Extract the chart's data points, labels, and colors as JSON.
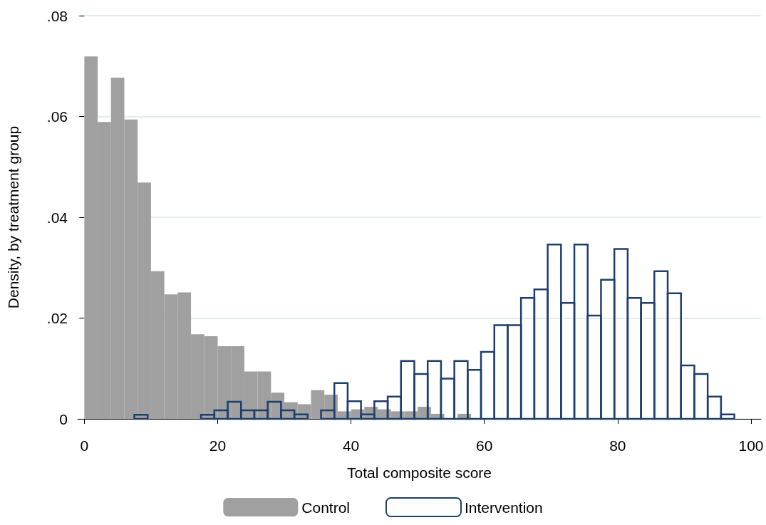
{
  "chart_data": {
    "type": "bar",
    "xlabel": "Total composite score",
    "ylabel": "Density, by treatment group",
    "xlim": [
      -1,
      101.5
    ],
    "xticks": [
      0,
      20,
      40,
      60,
      80,
      100
    ],
    "ylim": [
      0,
      0.08
    ],
    "yticks": [
      0,
      {
        "value": 0.02,
        "label": ".02"
      },
      {
        "value": 0.04,
        "label": ".04"
      },
      {
        "value": 0.06,
        "label": ".06"
      },
      {
        "value": 0.08,
        "label": ".08"
      }
    ],
    "grid": "y",
    "legend": "bottom",
    "series": [
      {
        "name": "Control",
        "color": "#a0a0a0",
        "x": [
          1,
          3,
          5,
          7,
          9,
          11,
          13,
          15,
          17,
          19,
          21,
          23,
          25,
          27,
          29,
          31,
          33,
          35,
          37,
          39,
          41,
          43,
          45,
          47,
          49,
          51,
          53,
          55,
          57
        ],
        "values": [
          0.0719,
          0.0589,
          0.0677,
          0.0594,
          0.0469,
          0.0293,
          0.0247,
          0.0251,
          0.0168,
          0.0164,
          0.0144,
          0.0144,
          0.0094,
          0.0094,
          0.0052,
          0.0033,
          0.0029,
          0.0057,
          0.0048,
          0.0015,
          0.0019,
          0.0024,
          0.0019,
          0.0015,
          0.0015,
          0.0024,
          0.001,
          0,
          0.001
        ]
      },
      {
        "name": "Intervention",
        "color": "#1f3f6b",
        "x": [
          8.5,
          10.5,
          12.5,
          14.5,
          16.5,
          18.5,
          20.5,
          22.5,
          24.5,
          26.5,
          28.5,
          30.5,
          32.5,
          34.5,
          36.5,
          38.5,
          40.5,
          42.5,
          44.5,
          46.5,
          48.5,
          50.5,
          52.5,
          54.5,
          56.5,
          58.5,
          60.5,
          62.5,
          64.5,
          66.5,
          68.5,
          70.5,
          72.5,
          74.5,
          76.5,
          78.5,
          80.5,
          82.5,
          84.5,
          86.5,
          88.5,
          90.5,
          92.5,
          94.5,
          96.5
        ],
        "values": [
          0.0008,
          0,
          0,
          0,
          0,
          0.0008,
          0.0017,
          0.0034,
          0.0017,
          0.0017,
          0.0034,
          0.0017,
          0.0009,
          0,
          0.0017,
          0.0071,
          0.0035,
          0.0009,
          0.0035,
          0.0044,
          0.0115,
          0.0089,
          0.0115,
          0.008,
          0.0115,
          0.0097,
          0.0133,
          0.0186,
          0.0186,
          0.024,
          0.0257,
          0.0346,
          0.023,
          0.0346,
          0.0205,
          0.0276,
          0.0337,
          0.024,
          0.023,
          0.0293,
          0.0249,
          0.0106,
          0.0089,
          0.0044,
          0.0009
        ]
      }
    ]
  }
}
